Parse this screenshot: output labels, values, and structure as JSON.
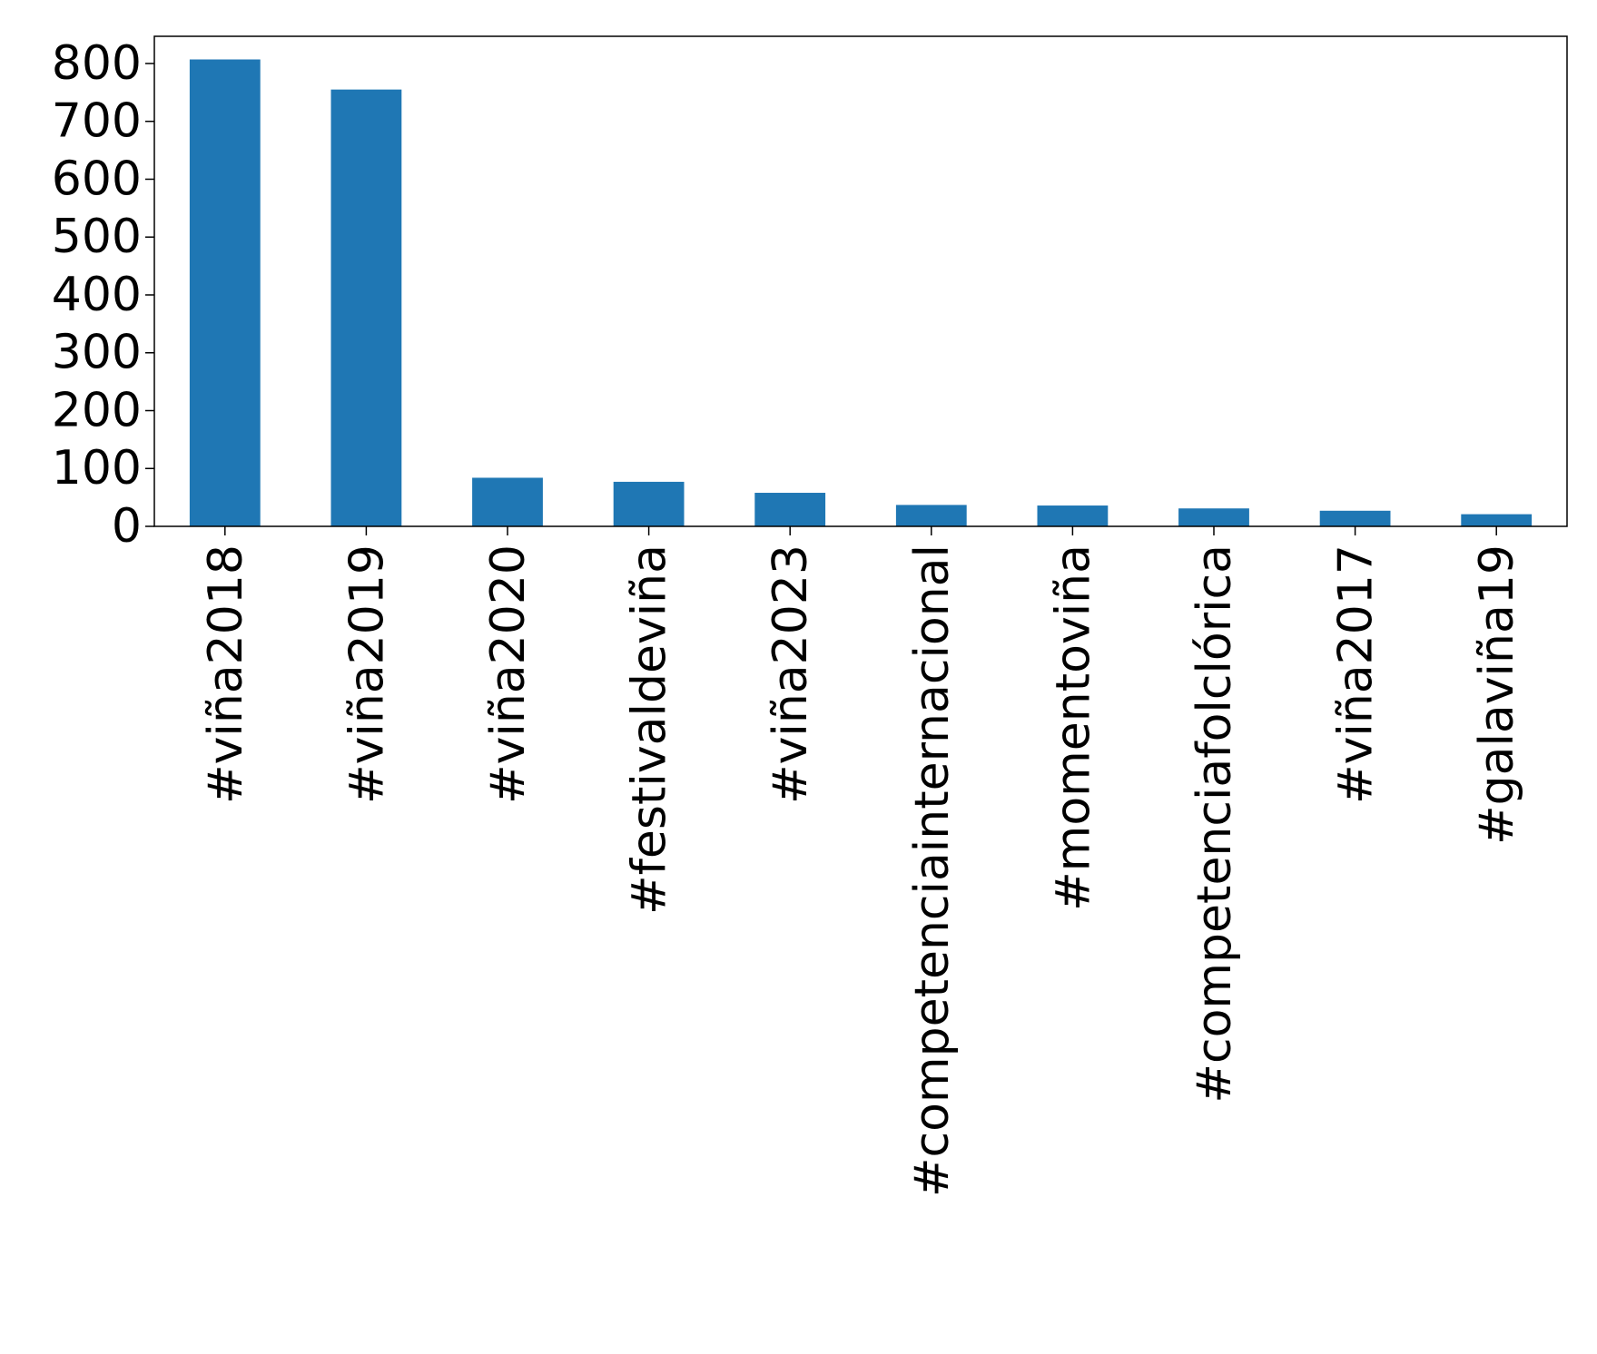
{
  "chart_data": {
    "type": "bar",
    "title": "",
    "xlabel": "",
    "ylabel": "",
    "categories": [
      "#viña2018",
      "#viña2019",
      "#viña2020",
      "#festivaldeviña",
      "#viña2023",
      "#competenciainternacional",
      "#momentoviña",
      "#competenciafolclórica",
      "#viña2017",
      "#galaviña19"
    ],
    "values": [
      807,
      755,
      84,
      77,
      58,
      37,
      36,
      31,
      27,
      21
    ],
    "ylim": [
      0,
      847
    ],
    "yticks": [
      0,
      100,
      200,
      300,
      400,
      500,
      600,
      700,
      800
    ],
    "grid": false,
    "legend": "none",
    "bar_color": "#1f77b4"
  }
}
